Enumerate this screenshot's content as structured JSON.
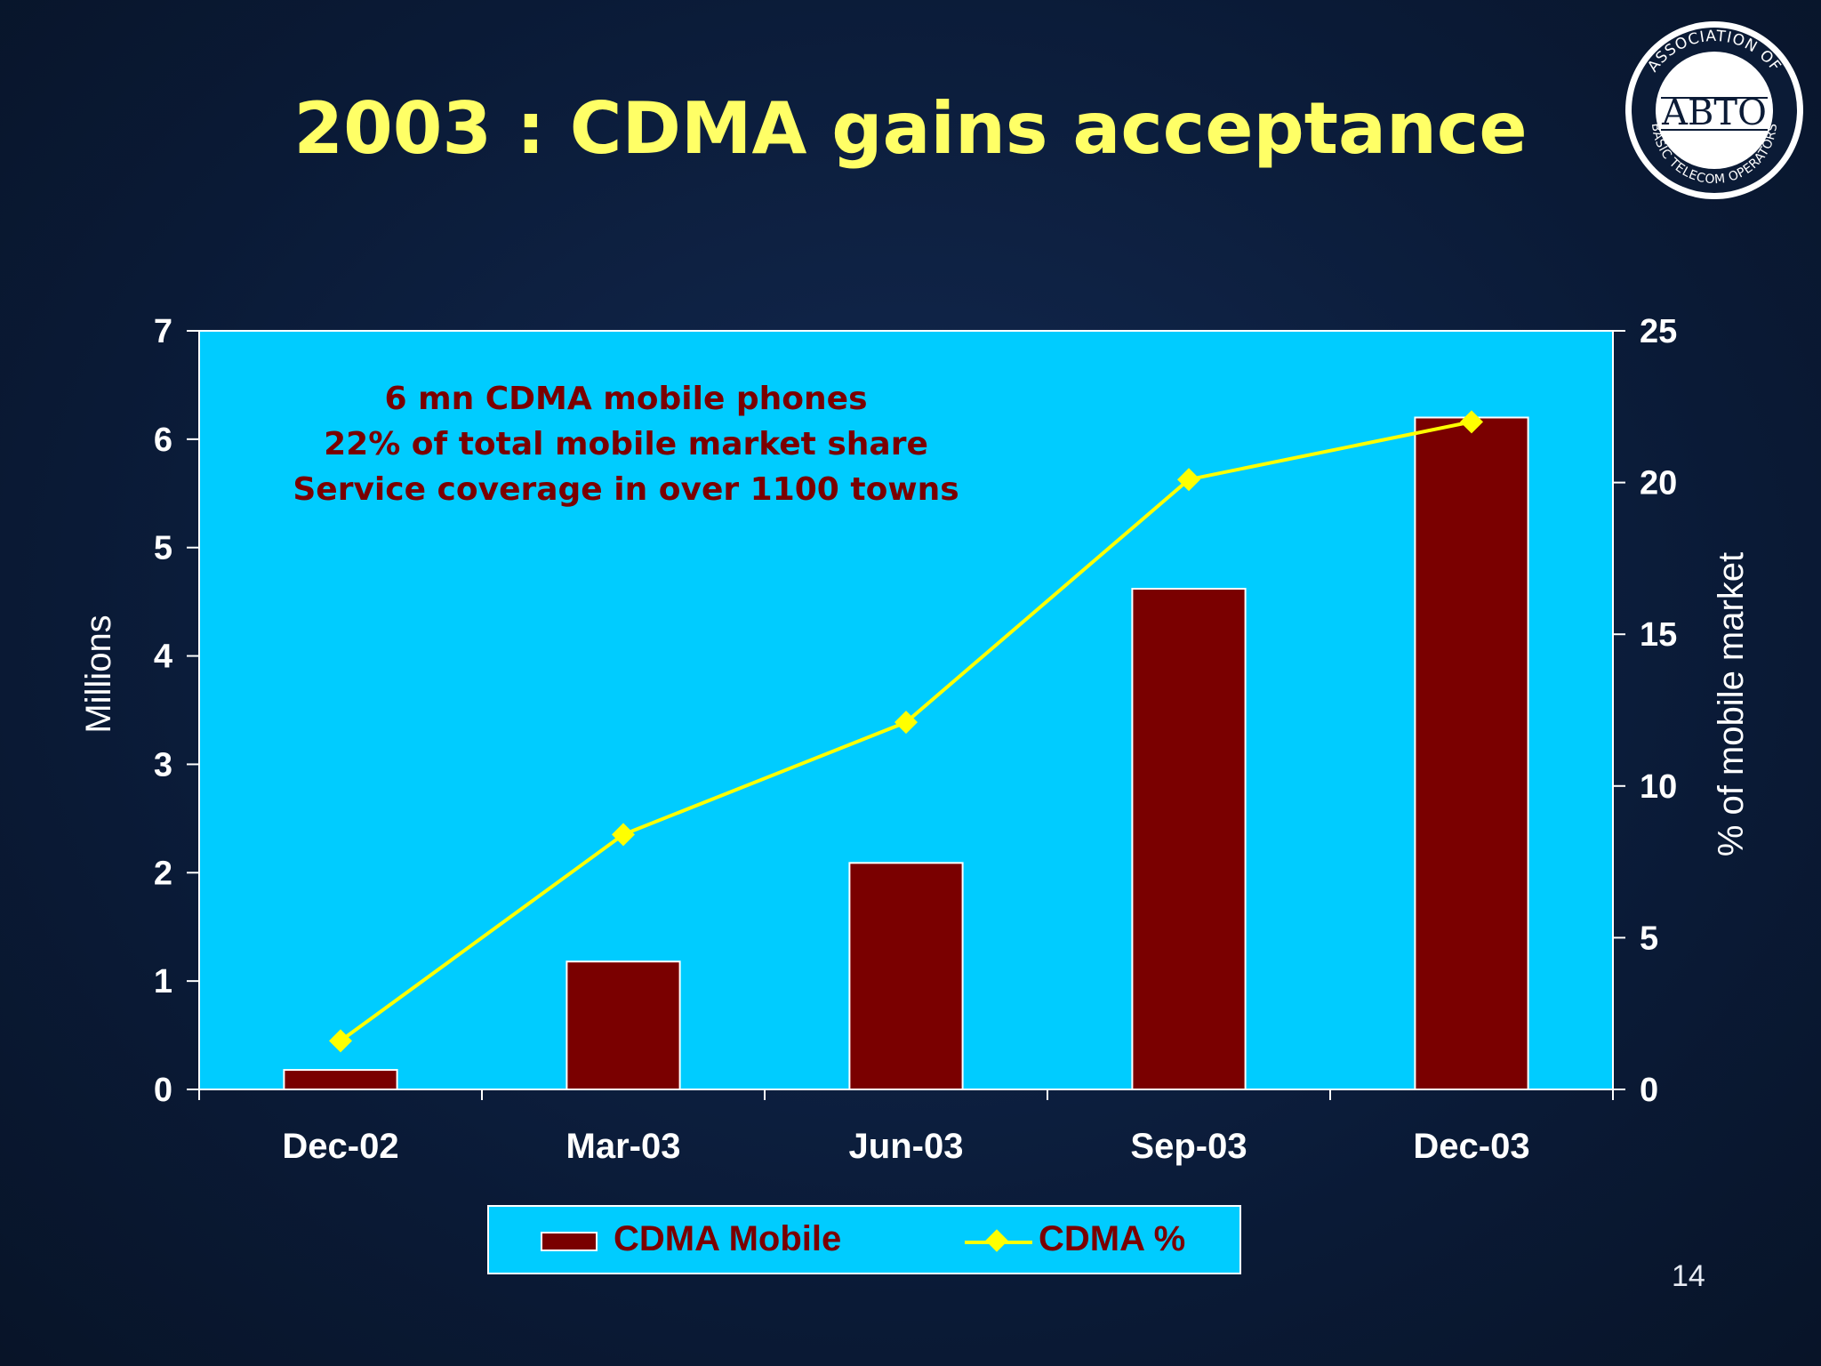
{
  "slide": {
    "title": "2003 : CDMA gains acceptance",
    "page_number": "14",
    "logo": {
      "ring_text": "ASSOCIATION OF BASIC TELECOM OPERATORS",
      "center_text": "ABTO"
    }
  },
  "colors": {
    "background": "#0b1b36",
    "title": "#ffff66",
    "plot_area": "#00ccff",
    "bar": "#7a0000",
    "line": "#ffff00",
    "annotation": "#7a0000",
    "axis_text": "#ffffff"
  },
  "chart_data": {
    "type": "bar",
    "categories": [
      "Dec-02",
      "Mar-03",
      "Jun-03",
      "Sep-03",
      "Dec-03"
    ],
    "series": [
      {
        "name": "CDMA Mobile",
        "type": "bar",
        "axis": "left",
        "values": [
          0.18,
          1.18,
          2.09,
          4.62,
          6.2
        ]
      },
      {
        "name": "CDMA %",
        "type": "line",
        "axis": "right",
        "marker": "diamond",
        "values": [
          1.6,
          8.4,
          12.1,
          20.1,
          22.0
        ]
      }
    ],
    "ylabel": "Millions",
    "y2label": "% of mobile market",
    "ylim": [
      0,
      7
    ],
    "y2lim": [
      0,
      25
    ],
    "yticks": [
      "0",
      "1",
      "2",
      "3",
      "4",
      "5",
      "6",
      "7"
    ],
    "y2ticks": [
      "0",
      "5",
      "10",
      "15",
      "20",
      "25"
    ],
    "annotation": [
      "6 mn CDMA mobile phones",
      "22% of total mobile market share",
      "Service coverage in over 1100 towns"
    ],
    "legend_position": "bottom",
    "grid": false
  }
}
